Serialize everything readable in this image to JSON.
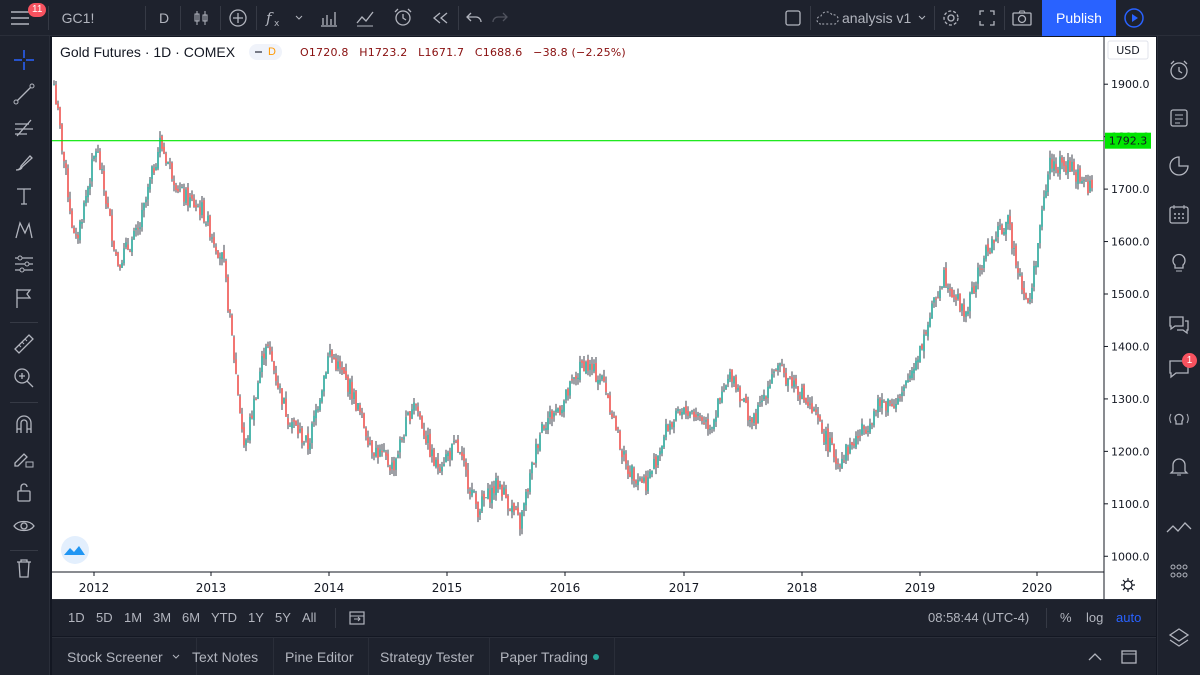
{
  "toolbar": {
    "menu_badge": "11",
    "symbol": "GC1!",
    "interval": "D",
    "layout_name": "analysis v1",
    "publish_label": "Publish"
  },
  "legend": {
    "title": "Gold Futures · 1D · COMEX",
    "indicator_letter": "D",
    "open": "O1720.8",
    "high": "H1723.2",
    "low": "L1671.7",
    "close": "C1688.6",
    "change": "−38.8 (−2.25%)"
  },
  "price_axis": {
    "currency": "USD",
    "labels": [
      "1900.0",
      "1800.0",
      "1700.0",
      "1600.0",
      "1500.0",
      "1400.0",
      "1300.0",
      "1200.0",
      "1100.0",
      "1000.0"
    ],
    "hline_value": 1792.3,
    "hline_label": "1792.3",
    "hline_color": "#00e600"
  },
  "time_axis": {
    "labels": [
      "2012",
      "2013",
      "2014",
      "2015",
      "2016",
      "2017",
      "2018",
      "2019",
      "2020"
    ]
  },
  "chart_data": {
    "type": "line",
    "title": "Gold Futures · 1D · COMEX",
    "xlabel": "",
    "ylabel": "USD",
    "ylim": [
      970,
      1990
    ],
    "x": [
      "2011-09",
      "2011-12",
      "2012-02",
      "2012-05",
      "2012-08",
      "2012-10",
      "2012-12",
      "2013-02",
      "2013-04",
      "2013-06",
      "2013-08",
      "2013-10",
      "2013-12",
      "2014-03",
      "2014-06",
      "2014-09",
      "2014-11",
      "2015-01",
      "2015-03",
      "2015-05",
      "2015-07",
      "2015-09",
      "2015-12",
      "2016-02",
      "2016-04",
      "2016-07",
      "2016-09",
      "2016-11",
      "2016-12",
      "2017-02",
      "2017-04",
      "2017-06",
      "2017-09",
      "2017-12",
      "2018-01",
      "2018-04",
      "2018-06",
      "2018-08",
      "2018-10",
      "2019-01",
      "2019-03",
      "2019-06",
      "2019-09",
      "2019-11",
      "2020-01",
      "2020-02",
      "2020-03",
      "2020-04",
      "2020-05",
      "2020-06"
    ],
    "values": [
      1900,
      1590,
      1780,
      1560,
      1620,
      1790,
      1690,
      1660,
      1560,
      1200,
      1410,
      1270,
      1210,
      1390,
      1320,
      1210,
      1170,
      1300,
      1170,
      1210,
      1090,
      1140,
      1060,
      1250,
      1290,
      1370,
      1330,
      1170,
      1140,
      1250,
      1280,
      1250,
      1350,
      1250,
      1360,
      1330,
      1260,
      1180,
      1230,
      1290,
      1300,
      1410,
      1540,
      1460,
      1580,
      1640,
      1470,
      1750,
      1740,
      1700
    ],
    "annotations": [
      "1792.3"
    ]
  },
  "range_bar": {
    "ranges": [
      "1D",
      "5D",
      "1M",
      "3M",
      "6M",
      "YTD",
      "1Y",
      "5Y",
      "All"
    ],
    "clock": "08:58:44 (UTC-4)",
    "percent": "%",
    "log": "log",
    "auto": "auto"
  },
  "bottom_tabs": [
    "Stock Screener",
    "Text Notes",
    "Pine Editor",
    "Strategy Tester",
    "Paper Trading"
  ],
  "right_badge": "1"
}
